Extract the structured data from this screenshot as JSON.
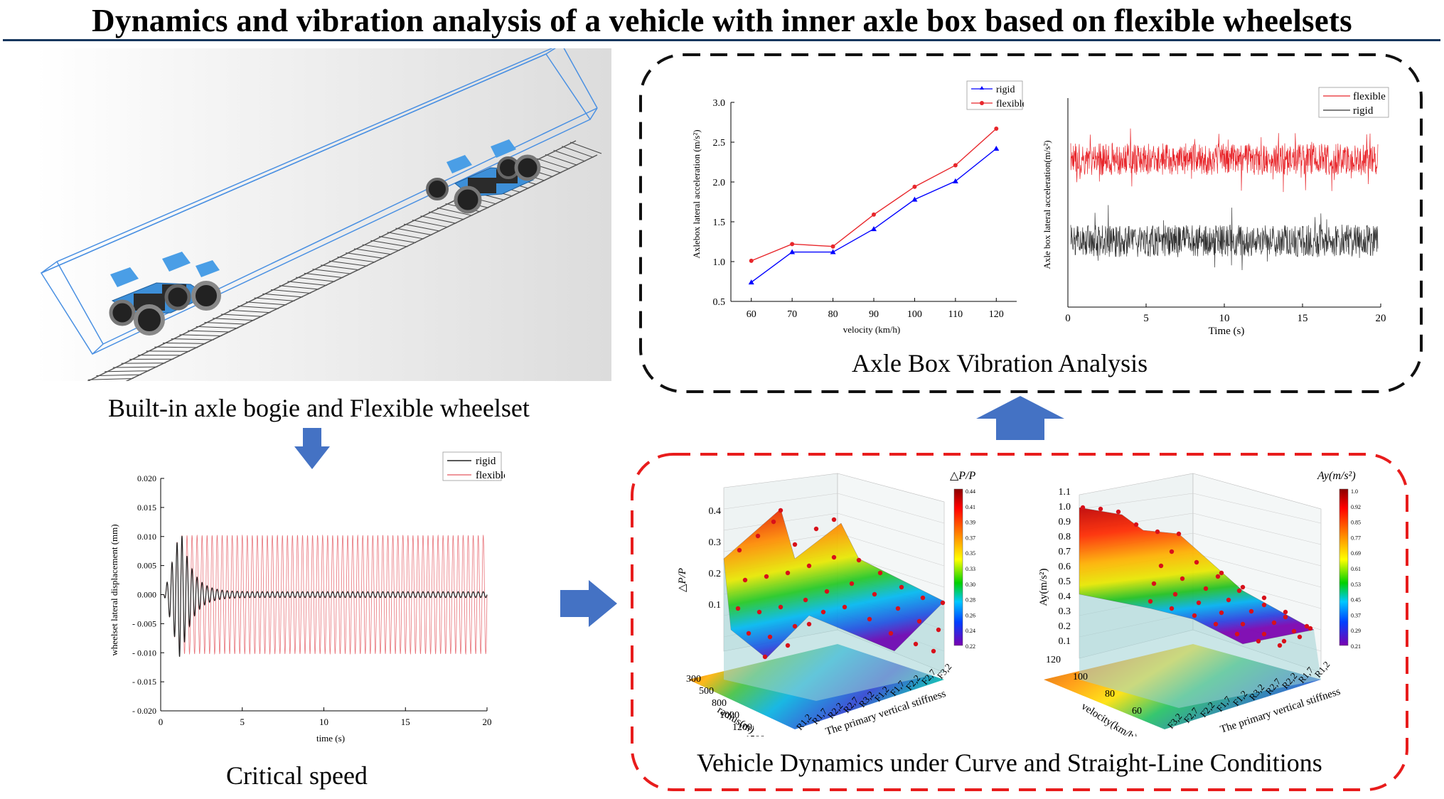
{
  "title": "Dynamics and vibration analysis of a vehicle with inner axle box based on flexible wheelsets",
  "captions": {
    "bogie": "Built-in axle bogie and Flexible wheelset",
    "critical": "Critical speed",
    "axlebox": "Axle Box Vibration Analysis",
    "dynamics": "Vehicle Dynamics under Curve and Straight-Line Conditions"
  },
  "colors": {
    "rigid_blue": "#0000ff",
    "flexible_red": "#e8262b",
    "arrow": "#4472c4",
    "dash_black": "#111111",
    "dash_red": "#e81c1c",
    "title_rule": "#17375e"
  },
  "chart_data": [
    {
      "type": "line",
      "id": "axlebox-velocity",
      "categories": [
        60,
        70,
        80,
        90,
        100,
        110,
        120
      ],
      "xlabel": "velocity (km/h)",
      "ylabel": "Axlebox lateral acceleration (m/s²)",
      "xlim": [
        55,
        125
      ],
      "ylim": [
        0.5,
        3.0
      ],
      "yticks": [
        "0.5",
        "1.0",
        "1.5",
        "2.0",
        "2.5",
        "3.0"
      ],
      "series": [
        {
          "name": "rigid",
          "color": "#0000ff",
          "marker": "triangle",
          "values": [
            0.74,
            1.12,
            1.12,
            1.41,
            1.78,
            2.01,
            2.42
          ]
        },
        {
          "name": "flexible",
          "color": "#e8262b",
          "marker": "circle",
          "values": [
            1.01,
            1.22,
            1.19,
            1.59,
            1.94,
            2.21,
            2.67
          ]
        }
      ],
      "legend": "top-right"
    },
    {
      "type": "line",
      "id": "axlebox-time",
      "xlabel": "Time (s)",
      "ylabel": "Axle box lateral acceleration(m/s²)",
      "xlim": [
        0,
        20
      ],
      "xticks": [
        "0",
        "5",
        "10",
        "15",
        "20"
      ],
      "series": [
        {
          "name": "flexible",
          "color": "#e8262b"
        },
        {
          "name": "rigid",
          "color": "#333333"
        }
      ],
      "legend": "top-right"
    },
    {
      "type": "line",
      "id": "critical-speed",
      "xlabel": "time (s)",
      "ylabel": "wheelset lateral displacement (mm)",
      "xlim": [
        0,
        20
      ],
      "ylim": [
        -0.02,
        0.02
      ],
      "xticks": [
        "0",
        "5",
        "10",
        "15",
        "20"
      ],
      "yticks": [
        "0.020",
        "0.015",
        "0.010",
        "0.005",
        "0.000",
        "- 0.005",
        "- 0.010",
        "- 0.015",
        "- 0.020"
      ],
      "series": [
        {
          "name": "rigid",
          "color": "#222222",
          "description": "decaying oscillation"
        },
        {
          "name": "flexible",
          "color": "#e8737a",
          "amplitude": 0.0102
        }
      ],
      "legend": "top-right"
    },
    {
      "type": "heatmap",
      "id": "dpp-surface",
      "colorbar_title": "△P/P",
      "colorbar_ticks": [
        "0.44",
        "0.41",
        "0.39",
        "0.37",
        "0.35",
        "0.33",
        "0.30",
        "0.28",
        "0.26",
        "0.24",
        "0.22"
      ],
      "zlabel": "△P/P",
      "zticks": [
        "0.4",
        "0.3",
        "0.2",
        "0.1"
      ],
      "ylabel": "radius(m)",
      "yticks": [
        "300",
        "500",
        "800",
        "1000",
        "1200",
        "1500"
      ],
      "xlabel": "The primary vertical stiffness",
      "xticks": [
        "R1,2",
        "R1,7",
        "R2,2",
        "R2,7",
        "R3,2",
        "F1,2",
        "F1,7",
        "F2,2",
        "F2,7",
        "F3,2"
      ]
    },
    {
      "type": "heatmap",
      "id": "ay-surface",
      "colorbar_title": "Ay(m/s²)",
      "colorbar_ticks": [
        "1.0",
        "0.92",
        "0.85",
        "0.77",
        "0.69",
        "0.61",
        "0.53",
        "0.45",
        "0.37",
        "0.29",
        "0.21"
      ],
      "zlabel": "Ay(m/s²)",
      "zticks": [
        "1.1",
        "1.0",
        "0.9",
        "0.8",
        "0.7",
        "0.6",
        "0.5",
        "0.4",
        "0.3",
        "0.2",
        "0.1"
      ],
      "ylabel": "velocity(km/h)",
      "yticks": [
        "120",
        "100",
        "80",
        "60"
      ],
      "xlabel": "The primary vertical stiffness",
      "xticks": [
        "F3,2",
        "F2,7",
        "F2,2",
        "F1,7",
        "F1,2",
        "R3,2",
        "R2,7",
        "R2,2",
        "R1,7",
        "R1,2"
      ]
    }
  ]
}
